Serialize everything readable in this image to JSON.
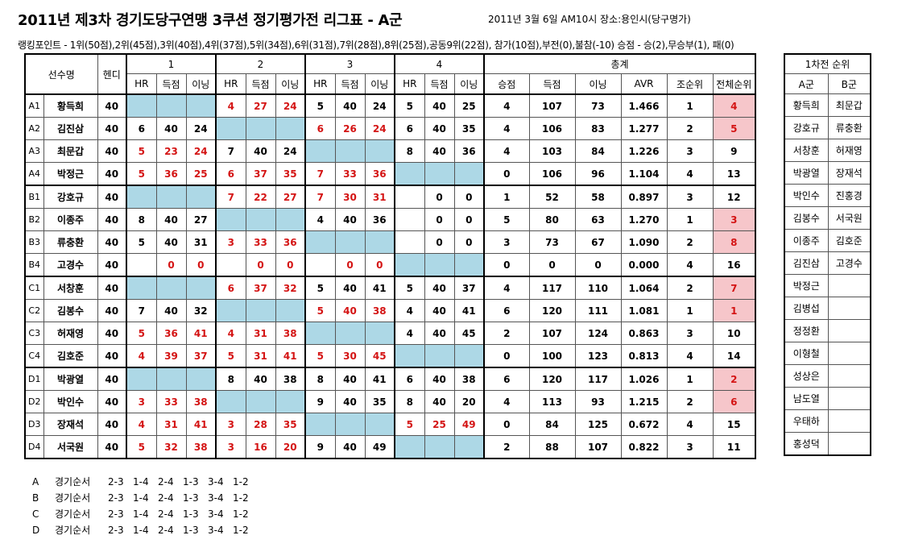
{
  "title": "2011년 제3차 경기도당구연맹 3쿠션 정기평가전 리그표 - A군",
  "info": "2011년 3월 6일 AM10시  장소:용인시(당구명가)",
  "rules": "랭킹포인트 - 1위(50점),2위(45점),3위(40점),4위(37점),5위(34점),6위(31점),7위(28점),8위(25점),공동9위(22점), 참가(10점),부전(0),불참(-10)  승점 - 승(2),무승부(1), 패(0)",
  "headers": {
    "player": "선수명",
    "handi": "헨디",
    "rounds": [
      "1",
      "2",
      "3",
      "4"
    ],
    "total": "총계",
    "sub": [
      "HR",
      "득점",
      "이닝"
    ],
    "total_sub": [
      "승점",
      "득점",
      "이닝",
      "AVR",
      "조순위",
      "전체순위"
    ]
  },
  "rows": [
    {
      "code": "A1",
      "name": "황득희",
      "h": "40",
      "g": [
        null,
        [
          "4",
          "27",
          "24",
          true
        ],
        [
          "5",
          "40",
          "24",
          false
        ],
        [
          "5",
          "40",
          "25",
          false
        ]
      ],
      "t": [
        "4",
        "107",
        "73",
        "1.466",
        "1",
        "4"
      ],
      "pink": true
    },
    {
      "code": "A2",
      "name": "김진삼",
      "h": "40",
      "g": [
        [
          "6",
          "40",
          "24",
          false
        ],
        null,
        [
          "6",
          "26",
          "24",
          true
        ],
        [
          "6",
          "40",
          "35",
          false
        ]
      ],
      "t": [
        "4",
        "106",
        "83",
        "1.277",
        "2",
        "5"
      ],
      "pink": true
    },
    {
      "code": "A3",
      "name": "최문갑",
      "h": "40",
      "g": [
        [
          "5",
          "23",
          "24",
          true
        ],
        [
          "7",
          "40",
          "24",
          false
        ],
        null,
        [
          "8",
          "40",
          "36",
          false
        ]
      ],
      "t": [
        "4",
        "103",
        "84",
        "1.226",
        "3",
        "9"
      ],
      "pink": false
    },
    {
      "code": "A4",
      "name": "박정근",
      "h": "40",
      "g": [
        [
          "5",
          "36",
          "25",
          true
        ],
        [
          "6",
          "37",
          "35",
          true
        ],
        [
          "7",
          "33",
          "36",
          true
        ],
        null
      ],
      "t": [
        "0",
        "106",
        "96",
        "1.104",
        "4",
        "13"
      ],
      "pink": false
    },
    {
      "code": "B1",
      "name": "강호규",
      "h": "40",
      "g": [
        null,
        [
          "7",
          "22",
          "27",
          true
        ],
        [
          "7",
          "30",
          "31",
          true
        ],
        [
          "",
          "0",
          "0",
          false
        ]
      ],
      "t": [
        "1",
        "52",
        "58",
        "0.897",
        "3",
        "12"
      ],
      "pink": false
    },
    {
      "code": "B2",
      "name": "이종주",
      "h": "40",
      "g": [
        [
          "8",
          "40",
          "27",
          false
        ],
        null,
        [
          "4",
          "40",
          "36",
          false
        ],
        [
          "",
          "0",
          "0",
          false
        ]
      ],
      "t": [
        "5",
        "80",
        "63",
        "1.270",
        "1",
        "3"
      ],
      "pink": true
    },
    {
      "code": "B3",
      "name": "류충환",
      "h": "40",
      "g": [
        [
          "5",
          "40",
          "31",
          false
        ],
        [
          "3",
          "33",
          "36",
          true
        ],
        null,
        [
          "",
          "0",
          "0",
          false
        ]
      ],
      "t": [
        "3",
        "73",
        "67",
        "1.090",
        "2",
        "8"
      ],
      "pink": true
    },
    {
      "code": "B4",
      "name": "고경수",
      "h": "40",
      "g": [
        [
          "",
          "0",
          "0",
          true
        ],
        [
          "",
          "0",
          "0",
          true
        ],
        [
          "",
          "0",
          "0",
          true
        ],
        null
      ],
      "t": [
        "0",
        "0",
        "0",
        "0.000",
        "4",
        "16"
      ],
      "pink": false
    },
    {
      "code": "C1",
      "name": "서창훈",
      "h": "40",
      "g": [
        null,
        [
          "6",
          "37",
          "32",
          true
        ],
        [
          "5",
          "40",
          "41",
          false
        ],
        [
          "5",
          "40",
          "37",
          false
        ]
      ],
      "t": [
        "4",
        "117",
        "110",
        "1.064",
        "2",
        "7"
      ],
      "pink": true
    },
    {
      "code": "C2",
      "name": "김봉수",
      "h": "40",
      "g": [
        [
          "7",
          "40",
          "32",
          false
        ],
        null,
        [
          "5",
          "40",
          "38",
          true
        ],
        [
          "4",
          "40",
          "41",
          false
        ]
      ],
      "t": [
        "6",
        "120",
        "111",
        "1.081",
        "1",
        "1"
      ],
      "pink": true
    },
    {
      "code": "C3",
      "name": "허재영",
      "h": "40",
      "g": [
        [
          "5",
          "36",
          "41",
          true
        ],
        [
          "4",
          "31",
          "38",
          true
        ],
        null,
        [
          "4",
          "40",
          "45",
          false
        ]
      ],
      "t": [
        "2",
        "107",
        "124",
        "0.863",
        "3",
        "10"
      ],
      "pink": false
    },
    {
      "code": "C4",
      "name": "김호준",
      "h": "40",
      "g": [
        [
          "4",
          "39",
          "37",
          true
        ],
        [
          "5",
          "31",
          "41",
          true
        ],
        [
          "5",
          "30",
          "45",
          true
        ],
        null
      ],
      "t": [
        "0",
        "100",
        "123",
        "0.813",
        "4",
        "14"
      ],
      "pink": false
    },
    {
      "code": "D1",
      "name": "박광열",
      "h": "40",
      "g": [
        null,
        [
          "8",
          "40",
          "38",
          false
        ],
        [
          "8",
          "40",
          "41",
          false
        ],
        [
          "6",
          "40",
          "38",
          false
        ]
      ],
      "t": [
        "6",
        "120",
        "117",
        "1.026",
        "1",
        "2"
      ],
      "pink": true
    },
    {
      "code": "D2",
      "name": "박인수",
      "h": "40",
      "g": [
        [
          "3",
          "33",
          "38",
          true
        ],
        null,
        [
          "9",
          "40",
          "35",
          false
        ],
        [
          "8",
          "40",
          "20",
          false
        ]
      ],
      "t": [
        "4",
        "113",
        "93",
        "1.215",
        "2",
        "6"
      ],
      "pink": true
    },
    {
      "code": "D3",
      "name": "장재석",
      "h": "40",
      "g": [
        [
          "4",
          "31",
          "41",
          true
        ],
        [
          "3",
          "28",
          "35",
          true
        ],
        null,
        [
          "5",
          "25",
          "49",
          true
        ]
      ],
      "t": [
        "0",
        "84",
        "125",
        "0.672",
        "4",
        "15"
      ],
      "pink": false
    },
    {
      "code": "D4",
      "name": "서국원",
      "h": "40",
      "g": [
        [
          "5",
          "32",
          "38",
          true
        ],
        [
          "3",
          "16",
          "20",
          true
        ],
        [
          "9",
          "40",
          "49",
          false
        ],
        null
      ],
      "t": [
        "2",
        "88",
        "107",
        "0.822",
        "3",
        "11"
      ],
      "pink": false
    }
  ],
  "side": {
    "title": "1차전 순위",
    "cols": [
      "A군",
      "B군"
    ],
    "rows": [
      [
        "황득희",
        "최문갑"
      ],
      [
        "강호규",
        "류충환"
      ],
      [
        "서창훈",
        "허재영"
      ],
      [
        "박광열",
        "장재석"
      ],
      [
        "박인수",
        "진홍경"
      ],
      [
        "김봉수",
        "서국원"
      ],
      [
        "이종주",
        "김호준"
      ],
      [
        "김진삼",
        "고경수"
      ],
      [
        "박정근",
        ""
      ],
      [
        "김병섭",
        ""
      ],
      [
        "정정환",
        ""
      ],
      [
        "이형철",
        ""
      ],
      [
        "성상은",
        ""
      ],
      [
        "남도열",
        ""
      ],
      [
        "우태하",
        ""
      ],
      [
        "홍성덕",
        ""
      ]
    ]
  },
  "order": {
    "label": "경기순서",
    "groups": [
      {
        "g": "A",
        "pairs": [
          "2-3",
          "1-4",
          "2-4",
          "1-3",
          "3-4",
          "1-2"
        ]
      },
      {
        "g": "B",
        "pairs": [
          "2-3",
          "1-4",
          "2-4",
          "1-3",
          "3-4",
          "1-2"
        ]
      },
      {
        "g": "C",
        "pairs": [
          "2-3",
          "1-4",
          "2-4",
          "1-3",
          "3-4",
          "1-2"
        ]
      },
      {
        "g": "D",
        "pairs": [
          "2-3",
          "1-4",
          "2-4",
          "1-3",
          "3-4",
          "1-2"
        ]
      }
    ]
  }
}
